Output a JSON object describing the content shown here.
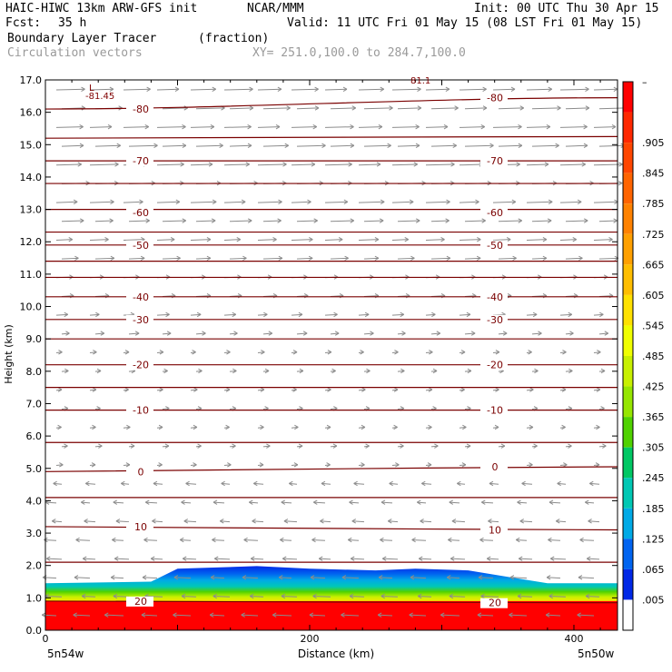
{
  "header": {
    "model": "HAIC-HIWC 13km ARW-GFS init",
    "org": "NCAR/MMM",
    "init": "Init: 00 UTC Thu 30 Apr 15",
    "fcst_label": "Fcst:",
    "fcst_value": "35 h",
    "valid": "Valid: 11 UTC Fri 01 May 15 (08 LST Fri 01 May 15)",
    "field": "Boundary Layer Tracer",
    "units": "(fraction)",
    "overlay": "Circulation vectors",
    "xy": "XY= 251.0,100.0 to 284.7,100.0"
  },
  "chart_data": {
    "type": "heatmap",
    "ylabel": "Height (km)",
    "xlabel": "Distance (km)",
    "x_left_label": "5n54w",
    "x_right_label": "5n50w",
    "xlim": [
      0,
      433
    ],
    "ylim": [
      0,
      17
    ],
    "x_ticks": [
      0,
      200,
      400
    ],
    "y_ticks": [
      "0.0",
      "1.0",
      "2.0",
      "3.0",
      "4.0",
      "5.0",
      "6.0",
      "7.0",
      "8.0",
      "9.0",
      "10.0",
      "11.0",
      "12.0",
      "13.0",
      "14.0",
      "15.0",
      "16.0",
      "17.0"
    ],
    "colorbar_labels": [
      "–",
      ".905",
      ".845",
      ".785",
      ".725",
      ".665",
      ".605",
      ".545",
      ".485",
      ".425",
      ".365",
      ".305",
      ".245",
      ".185",
      ".125",
      ".065",
      ".005"
    ],
    "colorbar_colors": [
      "#ff0000",
      "#ff2800",
      "#ff4600",
      "#ff6400",
      "#ff8200",
      "#ffa000",
      "#ffbe00",
      "#ffe100",
      "#f0ff00",
      "#c8f000",
      "#96e600",
      "#50d200",
      "#00c864",
      "#00c8b4",
      "#00aae6",
      "#0064f0",
      "#0028e6",
      "#ffffff"
    ],
    "temperature_contours": [
      {
        "label": "-80",
        "levels": [
          16.1,
          16.45
        ]
      },
      {
        "label": "-70",
        "levels": [
          14.5,
          14.5
        ]
      },
      {
        "label": "-60",
        "levels": [
          12.9,
          12.9
        ]
      },
      {
        "label": "-50",
        "levels": [
          11.9,
          11.9
        ]
      },
      {
        "label": "-40",
        "levels": [
          10.3,
          10.3
        ]
      },
      {
        "label": "-30",
        "levels": [
          9.6,
          9.6
        ]
      },
      {
        "label": "-20",
        "levels": [
          8.2,
          8.2
        ]
      },
      {
        "label": "-10",
        "levels": [
          6.8,
          6.8
        ]
      },
      {
        "label": "0",
        "levels": [
          4.9,
          5.05
        ]
      },
      {
        "label": "10",
        "levels": [
          3.2,
          3.1
        ]
      },
      {
        "label": "20",
        "levels": [
          0.9,
          0.85
        ]
      }
    ],
    "tracer_top_km": [
      {
        "x": 0,
        "top": 1.45
      },
      {
        "x": 80,
        "top": 1.5
      },
      {
        "x": 100,
        "top": 1.9
      },
      {
        "x": 160,
        "top": 1.98
      },
      {
        "x": 200,
        "top": 1.9
      },
      {
        "x": 250,
        "top": 1.85
      },
      {
        "x": 280,
        "top": 1.9
      },
      {
        "x": 320,
        "top": 1.85
      },
      {
        "x": 350,
        "top": 1.65
      },
      {
        "x": 380,
        "top": 1.45
      },
      {
        "x": 433,
        "top": 1.45
      }
    ],
    "min_label": "L",
    "min_value": "-81.45",
    "max_label": "81.1"
  }
}
